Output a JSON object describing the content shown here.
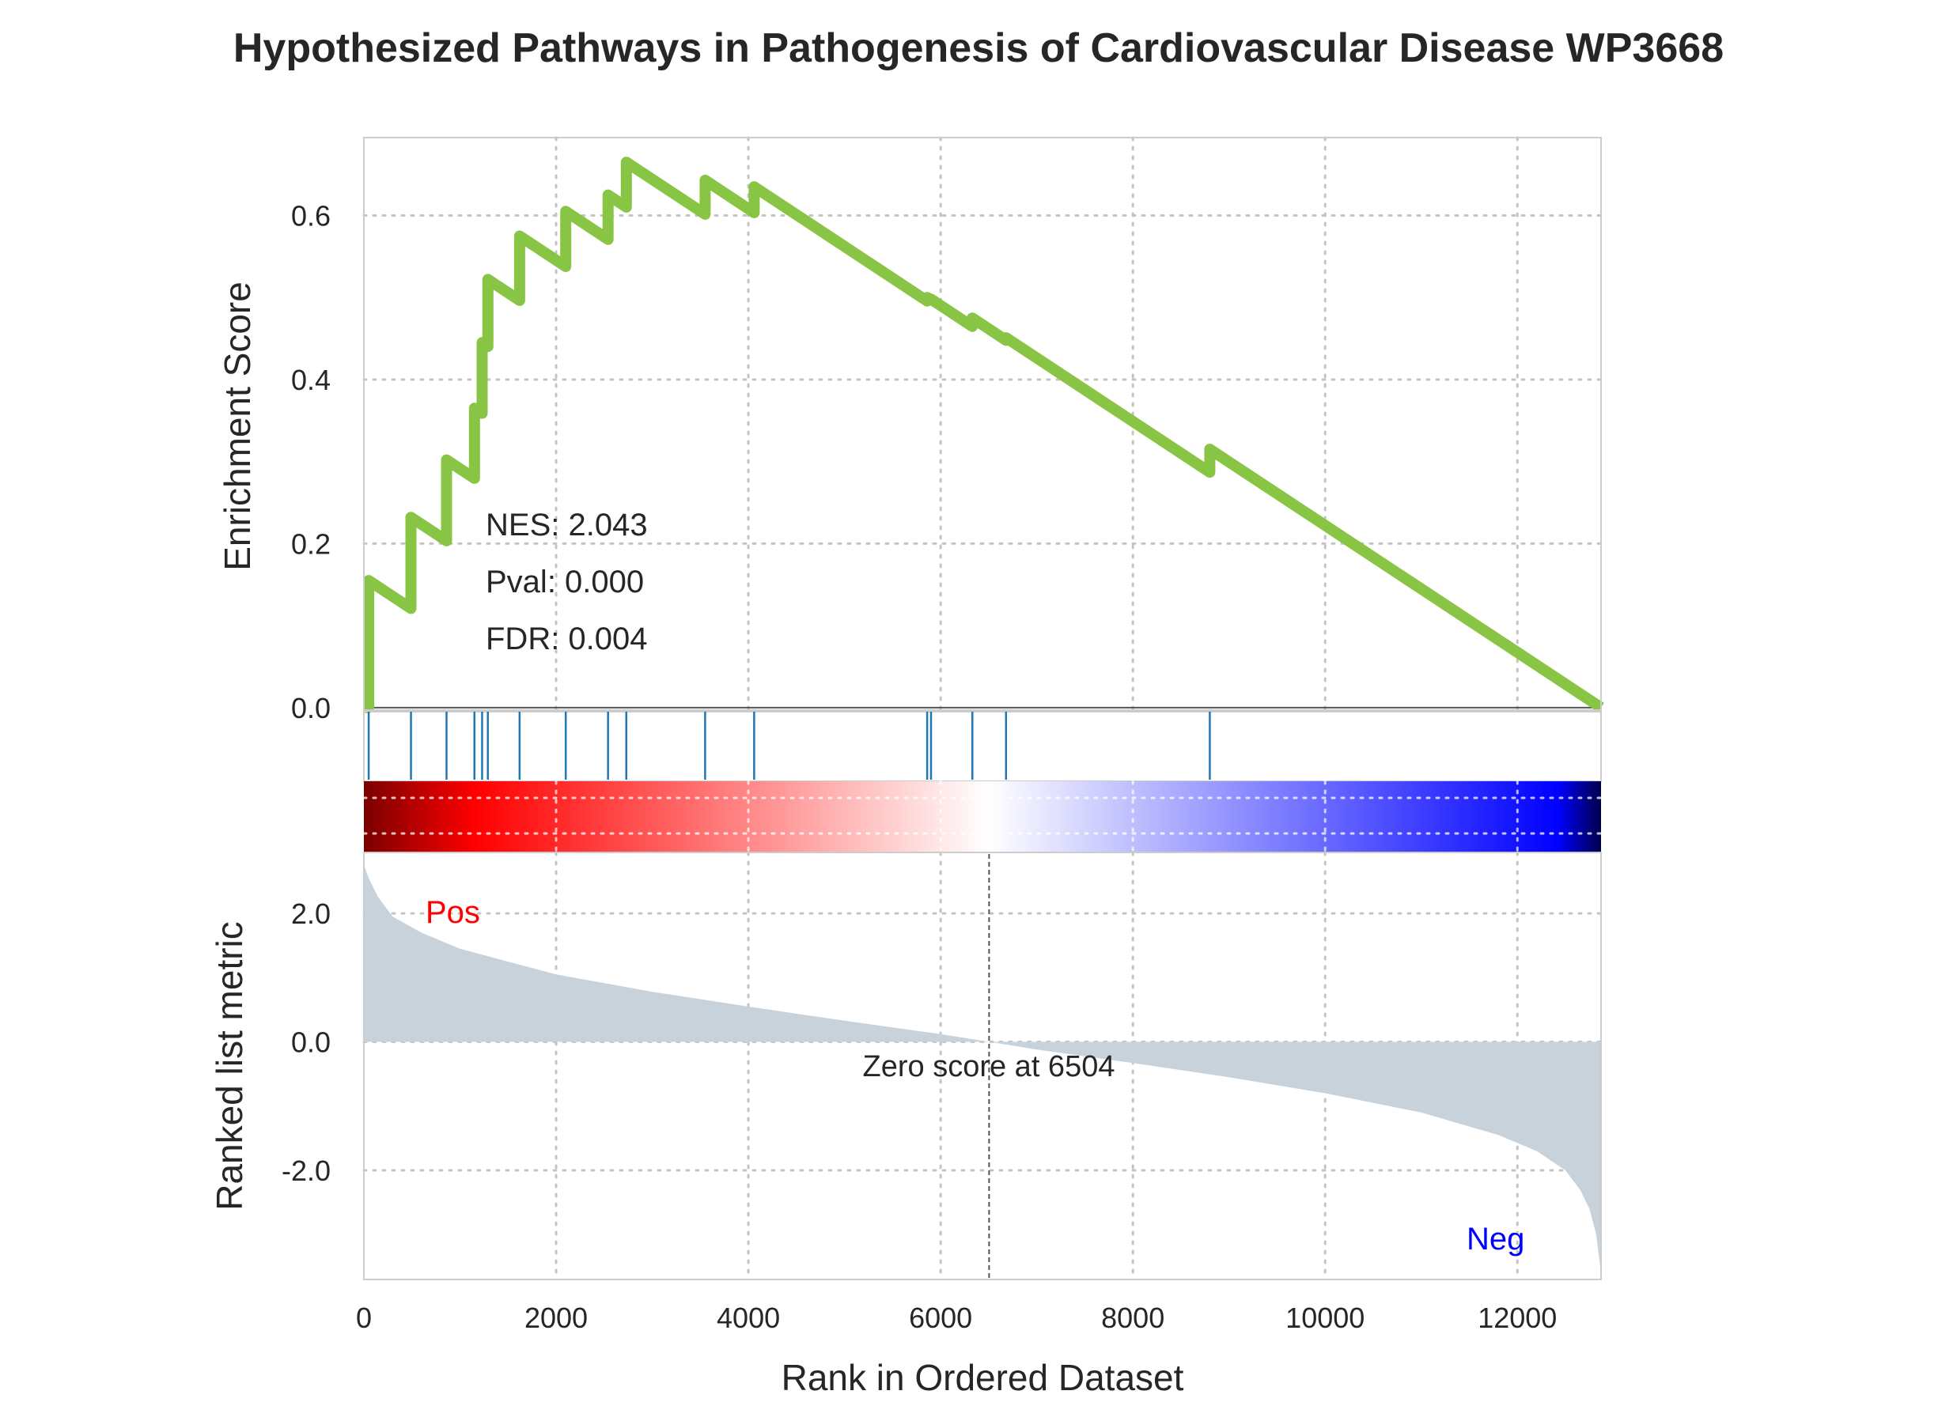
{
  "chart_data": {
    "type": "line",
    "title": "Hypothesized Pathways in Pathogenesis of Cardiovascular Disease WP3668",
    "xlabel": "Rank in Ordered Dataset",
    "x_ticks": [
      "0",
      "2000",
      "4000",
      "6000",
      "8000",
      "10000",
      "12000"
    ],
    "xlim": [
      0,
      12870
    ],
    "grid": true,
    "enrichment_panel": {
      "ylabel": "Enrichment Score",
      "y_ticks": [
        "0.0",
        "0.2",
        "0.4",
        "0.6"
      ],
      "ylim": [
        -0.005,
        0.695
      ],
      "line_color": "#88c544",
      "stats": {
        "nes": "NES: 2.043",
        "pval": "Pval: 0.000",
        "fdr": "FDR: 0.004"
      },
      "hit_ranks": [
        50,
        490,
        860,
        1150,
        1230,
        1290,
        1620,
        2100,
        2540,
        2730,
        3550,
        4060,
        5860,
        5900,
        6330,
        6680,
        8800
      ],
      "es_after_hit": [
        0.155,
        0.232,
        0.302,
        0.365,
        0.445,
        0.522,
        0.575,
        0.605,
        0.625,
        0.665,
        0.643,
        0.635,
        0.5,
        0.498,
        0.475,
        0.451,
        0.315
      ],
      "es_start": 0.0,
      "es_end": 0.0
    },
    "hit_color": "#1f77b4",
    "colorbar": [
      "#7a0000",
      "#ff0000",
      "#ffffff",
      "#0000ff",
      "#00004a"
    ],
    "ranked_panel": {
      "ylabel": "Ranked list metric",
      "y_ticks": [
        "2.0",
        "0.0",
        "-2.0"
      ],
      "ylim": [
        -3.7,
        2.95
      ],
      "fill_color": "#c8d2db",
      "metric_x": [
        0,
        50,
        150,
        300,
        600,
        1000,
        2000,
        3000,
        4000,
        5000,
        6000,
        6504,
        7000,
        8000,
        9000,
        10000,
        11000,
        11800,
        12200,
        12500,
        12650,
        12750,
        12820,
        12870
      ],
      "metric_y": [
        2.75,
        2.55,
        2.25,
        1.95,
        1.7,
        1.45,
        1.05,
        0.78,
        0.55,
        0.33,
        0.12,
        0.0,
        -0.12,
        -0.33,
        -0.55,
        -0.8,
        -1.1,
        -1.45,
        -1.7,
        -2.0,
        -2.3,
        -2.6,
        -3.0,
        -3.6
      ],
      "zero_cross": 6504,
      "zero_label": "Zero score at 6504",
      "pos_label": "Pos",
      "neg_label": "Neg"
    }
  }
}
